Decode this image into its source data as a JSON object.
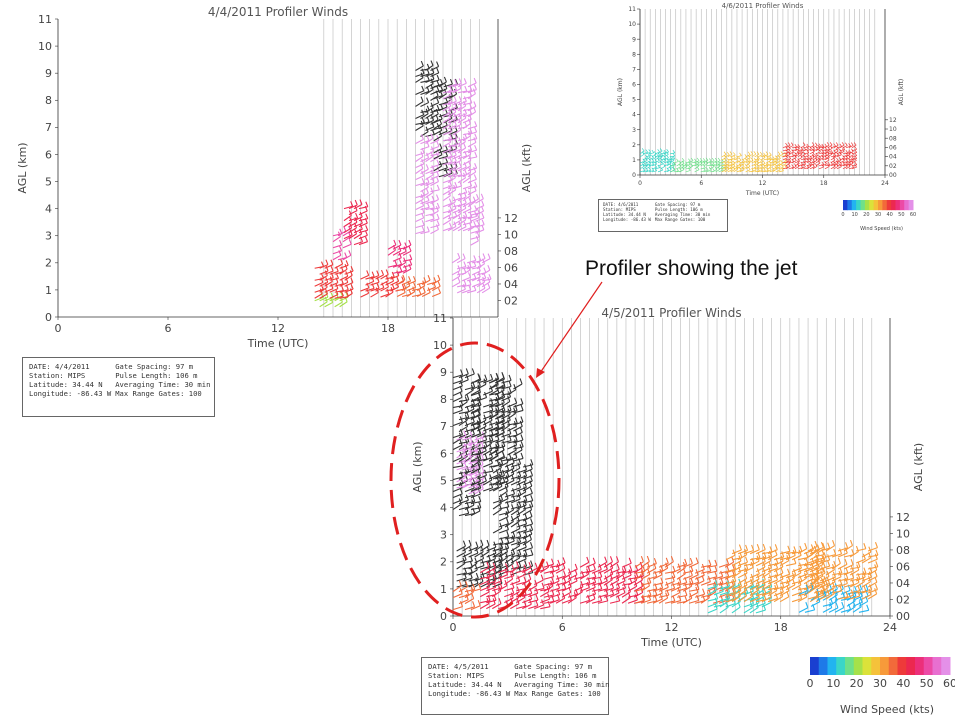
{
  "annotation": {
    "text": "Profiler showing the jet",
    "highlight_color": "#e02020"
  },
  "colorbar": {
    "label": "Wind Speed (kts)",
    "ticks": [
      "0",
      "10",
      "20",
      "30",
      "40",
      "50",
      "60"
    ],
    "colors": [
      "#1a3fd0",
      "#1e7ae8",
      "#22b4f0",
      "#3ad6c8",
      "#6fe08a",
      "#a6e14a",
      "#dbe23a",
      "#f5c23a",
      "#f79a3a",
      "#f26a3a",
      "#ee3a3a",
      "#ec2850",
      "#ec2f7a",
      "#ec4aa6",
      "#e86fd0",
      "#e490e8"
    ]
  },
  "chart_data": [
    {
      "id": "apr4",
      "type": "scatter",
      "title": "4/4/2011 Profiler Winds",
      "xlabel": "Time (UTC)",
      "ylabel": "AGL (km)",
      "ylabel_right": "AGL (kft)",
      "x_ticks": [
        "0",
        "6",
        "12",
        "18"
      ],
      "xlim": [
        0,
        24
      ],
      "ylim": [
        0,
        11
      ],
      "y_ticks": [
        "0",
        "1",
        "2",
        "3",
        "4",
        "5",
        "6",
        "7",
        "8",
        "9",
        "10",
        "11"
      ],
      "y2_ticks": [
        "02",
        "04",
        "06",
        "08",
        "10",
        "12"
      ],
      "grid_x_start": 14.5,
      "info": {
        "date": "DATE:  4/4/2011",
        "station": "Station: MIPS",
        "latitude": "Latitude: 34.44 N",
        "longitude": "Longitude: -86.43 W",
        "gate": "Gate Spacing: 97 m",
        "pulse": "Pulse Length: 106 m",
        "avg": "Averaging Time: 30 min",
        "range": "Max Range Gates: 100"
      },
      "barb_clusters": [
        {
          "x": [
            14.0,
            15.5
          ],
          "y": [
            0.2,
            0.6
          ],
          "speed": 20
        },
        {
          "x": [
            14.0,
            15.8
          ],
          "y": [
            0.6,
            1.8
          ],
          "speed": 38
        },
        {
          "x": [
            15.0,
            15.8
          ],
          "y": [
            1.9,
            3.0
          ],
          "speed": 50
        },
        {
          "x": [
            15.6,
            16.6
          ],
          "y": [
            2.5,
            4.0
          ],
          "speed": 42
        },
        {
          "x": [
            16.5,
            18.5
          ],
          "y": [
            0.7,
            1.4
          ],
          "speed": 40
        },
        {
          "x": [
            18.0,
            19.0
          ],
          "y": [
            1.5,
            2.5
          ],
          "speed": 48
        },
        {
          "x": [
            18.5,
            20.5
          ],
          "y": [
            0.7,
            1.2
          ],
          "speed": 35
        },
        {
          "x": [
            19.5,
            20.5
          ],
          "y": [
            6.5,
            9.1
          ],
          "speed": 72
        },
        {
          "x": [
            19.5,
            20.5
          ],
          "y": [
            3.0,
            6.4
          ],
          "speed": 58
        },
        {
          "x": [
            20.5,
            21.5
          ],
          "y": [
            5.0,
            8.5
          ],
          "speed": 72
        },
        {
          "x": [
            21.0,
            22.5
          ],
          "y": [
            3.0,
            8.5
          ],
          "speed": 62
        },
        {
          "x": [
            21.5,
            23.2
          ],
          "y": [
            0.7,
            2.0
          ],
          "speed": 68
        },
        {
          "x": [
            22.5,
            23.0
          ],
          "y": [
            2.6,
            4.2
          ],
          "speed": 58
        }
      ]
    },
    {
      "id": "apr6",
      "type": "scatter",
      "title": "4/6/2011 Profiler Winds",
      "xlabel": "Time (UTC)",
      "ylabel": "AGL (km)",
      "ylabel_right": "AGL (kft)",
      "x_ticks": [
        "0",
        "6",
        "12",
        "18",
        "24"
      ],
      "xlim": [
        0,
        24
      ],
      "ylim": [
        0,
        11
      ],
      "y_ticks": [
        "0",
        "1",
        "2",
        "3",
        "4",
        "5",
        "6",
        "7",
        "8",
        "9",
        "10",
        "11"
      ],
      "y2_ticks": [
        "00",
        "02",
        "04",
        "06",
        "08",
        "10",
        "12"
      ],
      "grid_x_start": 0,
      "info": {
        "date": "DATE:   4/6/2011",
        "station": "Station: MIPS",
        "latitude": "Latitude: 34.44 N",
        "longitude": "Longitude: -86.43 W",
        "gate": "Gate Spacing: 97 m",
        "pulse": "Pulse Length: 106 m",
        "avg": "Averaging Time: 30 min",
        "range": "Max Range Gates: 100"
      },
      "colorbar_ticks": [
        "0",
        "10",
        "20",
        "30",
        "40",
        "50",
        "60"
      ],
      "colorbar_label": "Wind Speed (kts)",
      "barb_clusters": [
        {
          "x": [
            0.0,
            3.0
          ],
          "y": [
            0.2,
            1.4
          ],
          "speed": 12
        },
        {
          "x": [
            3.0,
            8.0
          ],
          "y": [
            0.2,
            0.8
          ],
          "speed": 16
        },
        {
          "x": [
            8.0,
            14.0
          ],
          "y": [
            0.2,
            1.2
          ],
          "speed": 28
        },
        {
          "x": [
            14.0,
            21.0
          ],
          "y": [
            0.4,
            1.8
          ],
          "speed": 38
        }
      ]
    },
    {
      "id": "apr5",
      "type": "scatter",
      "title": "4/5/2011 Profiler Winds",
      "xlabel": "Time (UTC)",
      "ylabel": "AGL (km)",
      "ylabel_right": "AGL (kft)",
      "x_ticks": [
        "0",
        "6",
        "12",
        "18",
        "24"
      ],
      "xlim": [
        0,
        24
      ],
      "ylim": [
        0,
        11
      ],
      "y_ticks": [
        "0",
        "1",
        "2",
        "3",
        "4",
        "5",
        "6",
        "7",
        "8",
        "9",
        "10",
        "11"
      ],
      "y2_ticks": [
        "00",
        "02",
        "04",
        "06",
        "08",
        "10",
        "12"
      ],
      "grid_x_start": 0,
      "info": {
        "date": "DATE:  4/5/2011",
        "station": "Station: MIPS",
        "latitude": "Latitude: 34.44 N",
        "longitude": "Longitude: -86.43 W",
        "gate": "Gate Spacing: 97 m",
        "pulse": "Pulse Length: 106 m",
        "avg": "Averaging Time: 30 min",
        "range": "Max Range Gates: 100"
      },
      "barb_clusters": [
        {
          "x": [
            0.0,
            1.0
          ],
          "y": [
            3.5,
            8.8
          ],
          "speed": 72
        },
        {
          "x": [
            0.2,
            1.2
          ],
          "y": [
            4.5,
            6.5
          ],
          "speed": 60
        },
        {
          "x": [
            1.0,
            2.5
          ],
          "y": [
            4.5,
            8.6
          ],
          "speed": 72
        },
        {
          "x": [
            2.0,
            3.6
          ],
          "y": [
            5.5,
            8.6
          ],
          "speed": 72
        },
        {
          "x": [
            2.2,
            4.0
          ],
          "y": [
            1.5,
            5.5
          ],
          "speed": 72
        },
        {
          "x": [
            0.2,
            2.5
          ],
          "y": [
            0.9,
            2.4
          ],
          "speed": 72
        },
        {
          "x": [
            0.0,
            1.2
          ],
          "y": [
            0.1,
            0.9
          ],
          "speed": 34
        },
        {
          "x": [
            1.5,
            5.0
          ],
          "y": [
            0.2,
            1.6
          ],
          "speed": 44
        },
        {
          "x": [
            5.0,
            10.0
          ],
          "y": [
            0.3,
            1.8
          ],
          "speed": 42
        },
        {
          "x": [
            10.0,
            15.0
          ],
          "y": [
            0.3,
            1.8
          ],
          "speed": 36
        },
        {
          "x": [
            14.0,
            17.0
          ],
          "y": [
            0.0,
            1.0
          ],
          "speed": 12
        },
        {
          "x": [
            15.0,
            20.0
          ],
          "y": [
            0.4,
            2.3
          ],
          "speed": 32
        },
        {
          "x": [
            19.0,
            22.5
          ],
          "y": [
            0.0,
            0.8
          ],
          "speed": 10
        },
        {
          "x": [
            19.5,
            23.0
          ],
          "y": [
            0.6,
            2.4
          ],
          "speed": 30
        }
      ]
    }
  ]
}
